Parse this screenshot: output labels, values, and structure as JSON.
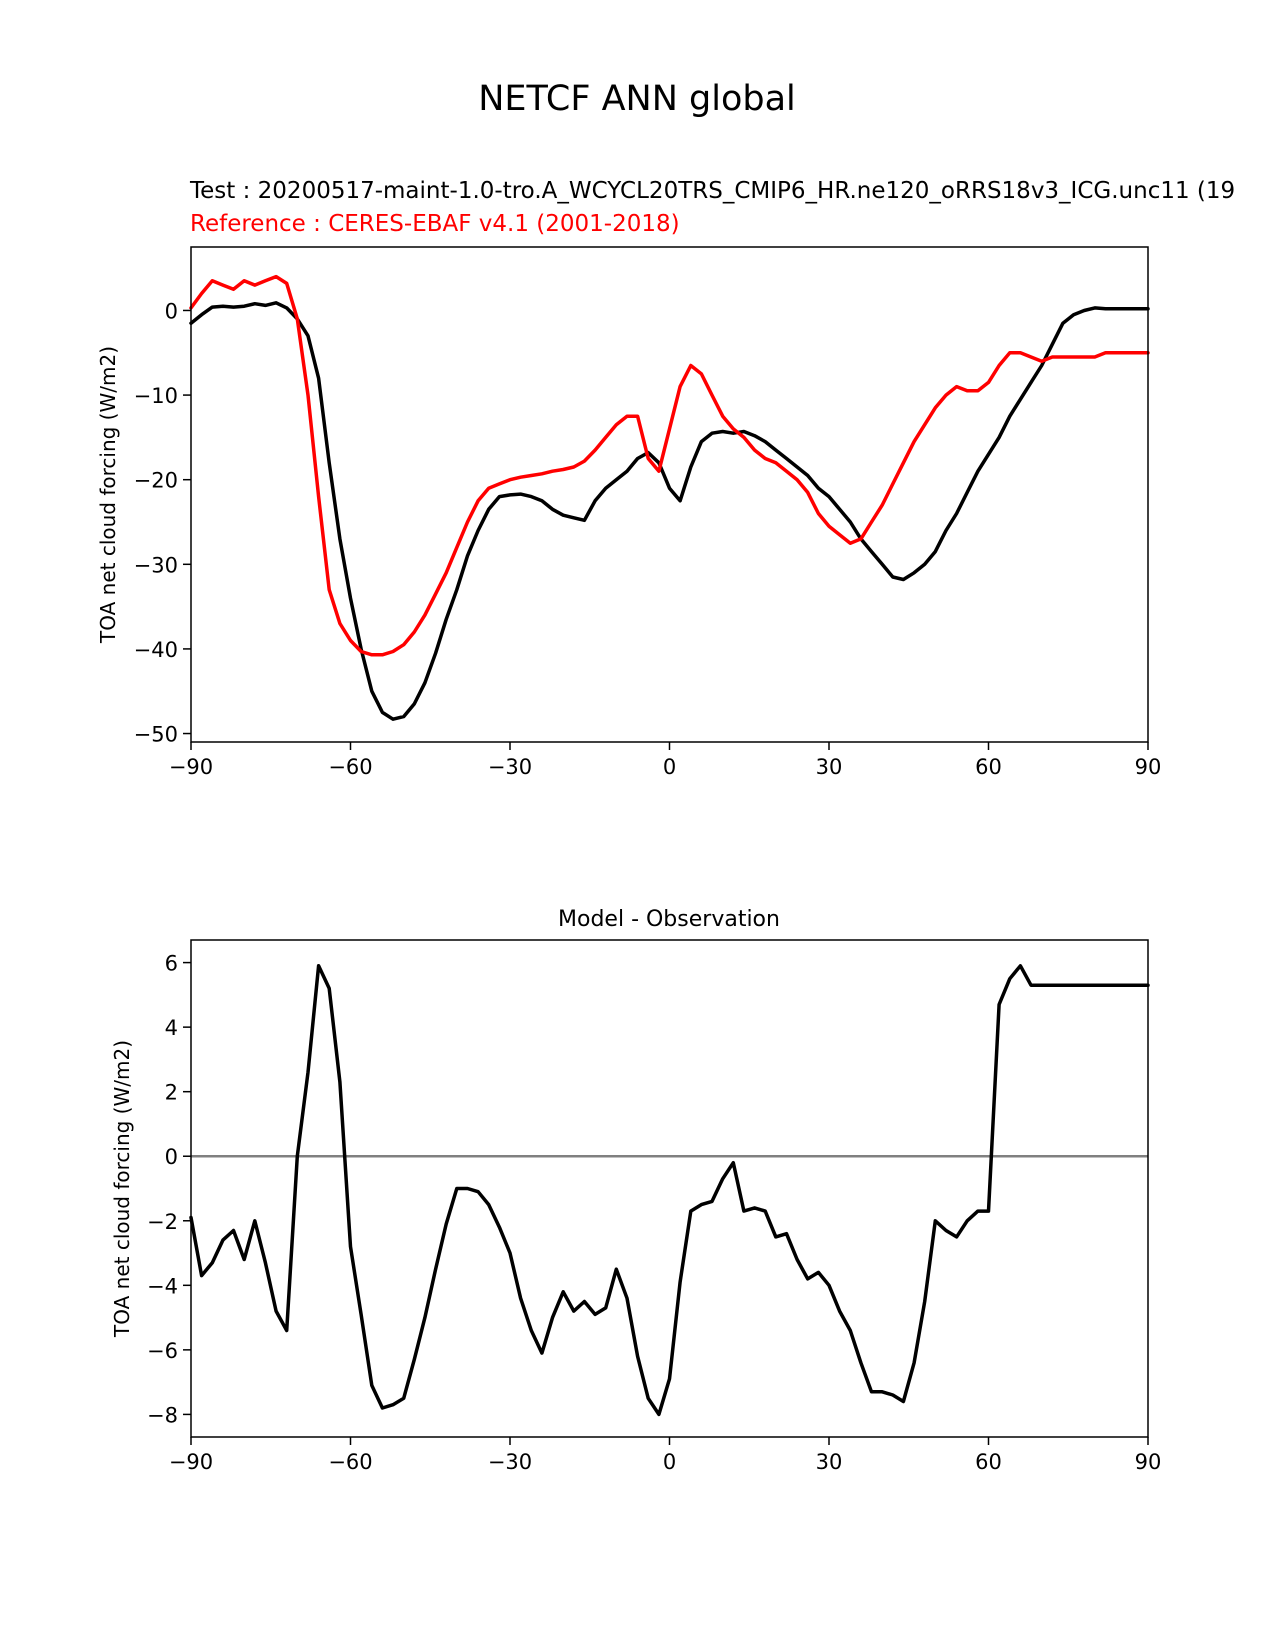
{
  "figure": {
    "suptitle": "NETCF ANN global",
    "test_label": "Test : 20200517-maint-1.0-tro.A_WCYCL20TRS_CMIP6_HR.ne120_oRRS18v3_ICG.unc11 (19",
    "reference_label": "Reference : CERES-EBAF v4.1 (2001-2018)",
    "test_color": "#000000",
    "reference_color": "#ff0000",
    "zero_line_color": "#808080"
  },
  "chart_data": [
    {
      "type": "line",
      "title": "",
      "xlabel": "",
      "ylabel": "TOA net cloud forcing (W/m2)",
      "xlim": [
        -90,
        90
      ],
      "ylim": [
        -51,
        7.5
      ],
      "xticks": [
        -90,
        -60,
        -30,
        0,
        30,
        60,
        90
      ],
      "yticks": [
        0,
        -10,
        -20,
        -30,
        -40,
        -50
      ],
      "series": [
        {
          "name": "test",
          "color": "#000000",
          "x": [
            -90,
            -88,
            -86,
            -84,
            -82,
            -80,
            -78,
            -76,
            -74,
            -72,
            -70,
            -68,
            -66,
            -64,
            -62,
            -60,
            -58,
            -56,
            -54,
            -52,
            -50,
            -48,
            -46,
            -44,
            -42,
            -40,
            -38,
            -36,
            -34,
            -32,
            -30,
            -28,
            -26,
            -24,
            -22,
            -20,
            -18,
            -16,
            -14,
            -12,
            -10,
            -8,
            -6,
            -4,
            -2,
            0,
            2,
            4,
            6,
            8,
            10,
            12,
            14,
            16,
            18,
            20,
            22,
            24,
            26,
            28,
            30,
            32,
            34,
            36,
            38,
            40,
            42,
            44,
            46,
            48,
            50,
            52,
            54,
            56,
            58,
            60,
            62,
            64,
            66,
            68,
            70,
            72,
            74,
            76,
            78,
            80,
            82,
            84,
            86,
            88,
            90
          ],
          "y": [
            -1.5,
            -0.5,
            0.4,
            0.5,
            0.4,
            0.5,
            0.8,
            0.6,
            0.9,
            0.3,
            -1.0,
            -3.0,
            -8.0,
            -18.0,
            -27.0,
            -34.0,
            -40.0,
            -45.0,
            -47.5,
            -48.3,
            -48.0,
            -46.5,
            -44.0,
            -40.5,
            -36.5,
            -33.0,
            -29.0,
            -26.0,
            -23.5,
            -22.0,
            -21.8,
            -21.7,
            -22.0,
            -22.5,
            -23.5,
            -24.2,
            -24.5,
            -24.8,
            -22.5,
            -21.0,
            -20.0,
            -19.0,
            -17.5,
            -16.8,
            -18.0,
            -21.0,
            -22.5,
            -18.5,
            -15.5,
            -14.5,
            -14.3,
            -14.5,
            -14.3,
            -14.8,
            -15.5,
            -16.5,
            -17.5,
            -18.5,
            -19.5,
            -21.0,
            -22.0,
            -23.5,
            -25.0,
            -27.0,
            -28.5,
            -30.0,
            -31.5,
            -31.8,
            -31.0,
            -30.0,
            -28.5,
            -26.0,
            -24.0,
            -21.5,
            -19.0,
            -17.0,
            -15.0,
            -12.5,
            -10.5,
            -8.5,
            -6.5,
            -4.0,
            -1.5,
            -0.5,
            0.0,
            0.3,
            0.2,
            0.2,
            0.2,
            0.2,
            0.2
          ]
        },
        {
          "name": "reference",
          "color": "#ff0000",
          "x": [
            -90,
            -88,
            -86,
            -84,
            -82,
            -80,
            -78,
            -76,
            -74,
            -72,
            -70,
            -68,
            -66,
            -64,
            -62,
            -60,
            -58,
            -56,
            -54,
            -52,
            -50,
            -48,
            -46,
            -44,
            -42,
            -40,
            -38,
            -36,
            -34,
            -32,
            -30,
            -28,
            -26,
            -24,
            -22,
            -20,
            -18,
            -16,
            -14,
            -12,
            -10,
            -8,
            -6,
            -4,
            -2,
            0,
            2,
            4,
            6,
            8,
            10,
            12,
            14,
            16,
            18,
            20,
            22,
            24,
            26,
            28,
            30,
            32,
            34,
            36,
            38,
            40,
            42,
            44,
            46,
            48,
            50,
            52,
            54,
            56,
            58,
            60,
            62,
            64,
            66,
            68,
            70,
            72,
            74,
            76,
            78,
            80,
            82,
            84,
            86,
            88,
            90
          ],
          "y": [
            0.3,
            2.0,
            3.5,
            3.0,
            2.5,
            3.5,
            3.0,
            3.5,
            4.0,
            3.2,
            -1.0,
            -10.0,
            -22.0,
            -33.0,
            -37.0,
            -39.0,
            -40.3,
            -40.7,
            -40.7,
            -40.3,
            -39.5,
            -38.0,
            -36.0,
            -33.5,
            -31.0,
            -28.0,
            -25.0,
            -22.5,
            -21.0,
            -20.5,
            -20.0,
            -19.7,
            -19.5,
            -19.3,
            -19.0,
            -18.8,
            -18.5,
            -17.8,
            -16.5,
            -15.0,
            -13.5,
            -12.5,
            -12.5,
            -17.5,
            -19.0,
            -14.0,
            -9.0,
            -6.5,
            -7.5,
            -10.0,
            -12.5,
            -14.0,
            -15.0,
            -16.5,
            -17.5,
            -18.0,
            -19.0,
            -20.0,
            -21.5,
            -24.0,
            -25.5,
            -26.5,
            -27.5,
            -27.0,
            -25.0,
            -23.0,
            -20.5,
            -18.0,
            -15.5,
            -13.5,
            -11.5,
            -10.0,
            -9.0,
            -9.5,
            -9.5,
            -8.5,
            -6.5,
            -5.0,
            -5.0,
            -5.5,
            -6.0,
            -5.5,
            -5.5,
            -5.5,
            -5.5,
            -5.5,
            -5.0,
            -5.0,
            -5.0,
            -5.0,
            -5.0
          ]
        }
      ]
    },
    {
      "type": "line",
      "title": "Model - Observation",
      "xlabel": "",
      "ylabel": "TOA net cloud forcing (W/m2)",
      "xlim": [
        -90,
        90
      ],
      "ylim": [
        -8.7,
        6.7
      ],
      "xticks": [
        -90,
        -60,
        -30,
        0,
        30,
        60,
        90
      ],
      "yticks": [
        6,
        4,
        2,
        0,
        -2,
        -4,
        -6,
        -8
      ],
      "zero_line": true,
      "series": [
        {
          "name": "difference",
          "color": "#000000",
          "x": [
            -90,
            -88,
            -86,
            -84,
            -82,
            -80,
            -78,
            -76,
            -74,
            -72,
            -70,
            -68,
            -66,
            -64,
            -62,
            -60,
            -58,
            -56,
            -54,
            -52,
            -50,
            -48,
            -46,
            -44,
            -42,
            -40,
            -38,
            -36,
            -34,
            -32,
            -30,
            -28,
            -26,
            -24,
            -22,
            -20,
            -18,
            -16,
            -14,
            -12,
            -10,
            -8,
            -6,
            -4,
            -2,
            0,
            2,
            4,
            6,
            8,
            10,
            12,
            14,
            16,
            18,
            20,
            22,
            24,
            26,
            28,
            30,
            32,
            34,
            36,
            38,
            40,
            42,
            44,
            46,
            48,
            50,
            52,
            54,
            56,
            58,
            60,
            62,
            64,
            66,
            68,
            70,
            72,
            74,
            76,
            78,
            80,
            82,
            84,
            86,
            88,
            90
          ],
          "y": [
            -1.9,
            -3.7,
            -3.3,
            -2.6,
            -2.3,
            -3.2,
            -2.0,
            -3.3,
            -4.8,
            -5.4,
            0.0,
            2.6,
            5.9,
            5.2,
            2.3,
            -2.8,
            -4.9,
            -7.1,
            -7.8,
            -7.7,
            -7.5,
            -6.3,
            -5.0,
            -3.5,
            -2.1,
            -1.0,
            -1.0,
            -1.1,
            -1.5,
            -2.2,
            -3.0,
            -4.4,
            -5.4,
            -6.1,
            -5.0,
            -4.2,
            -4.8,
            -4.5,
            -4.9,
            -4.7,
            -3.5,
            -4.4,
            -6.2,
            -7.5,
            -8.0,
            -6.9,
            -3.9,
            -1.7,
            -1.5,
            -1.4,
            -0.7,
            -0.2,
            -1.7,
            -1.6,
            -1.7,
            -2.5,
            -2.4,
            -3.2,
            -3.8,
            -3.6,
            -4.0,
            -4.8,
            -5.4,
            -6.4,
            -7.3,
            -7.3,
            -7.4,
            -7.6,
            -6.4,
            -4.5,
            -2.0,
            -2.3,
            -2.5,
            -2.0,
            -1.7,
            -1.7,
            4.7,
            5.5,
            5.9,
            5.3,
            5.3,
            5.3,
            5.3,
            5.3,
            5.3,
            5.3,
            5.3,
            5.3,
            5.3,
            5.3,
            5.3
          ]
        }
      ]
    }
  ]
}
